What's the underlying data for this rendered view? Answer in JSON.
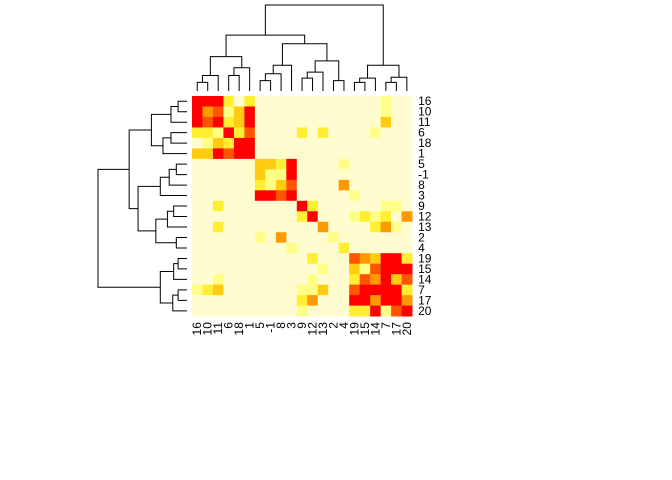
{
  "chart_data": {
    "type": "heatmap",
    "title": "",
    "xlabel": "",
    "ylabel": "",
    "color_scale": [
      "#fffdd0",
      "#ffff88",
      "#ffee33",
      "#ffcc11",
      "#ff9900",
      "#ff5500",
      "#ff0000"
    ],
    "row_labels": [
      "16",
      "10",
      "11",
      "6",
      "18",
      "1",
      "5",
      "-1",
      "8",
      "3",
      "9",
      "12",
      "13",
      "2",
      "4",
      "19",
      "15",
      "14",
      "7",
      "17",
      "20"
    ],
    "col_labels": [
      "16",
      "10",
      "11",
      "6",
      "18",
      "1",
      "5",
      "-1",
      "8",
      "3",
      "9",
      "12",
      "13",
      "2",
      "4",
      "19",
      "15",
      "14",
      "7",
      "17",
      "20"
    ],
    "values": [
      [
        6,
        6,
        6,
        2,
        0,
        2,
        0,
        0,
        0,
        0,
        0,
        0,
        0,
        0,
        0,
        0,
        0,
        0,
        1,
        0,
        0
      ],
      [
        6,
        4,
        5,
        1,
        3,
        6,
        0,
        0,
        0,
        0,
        0,
        0,
        0,
        0,
        0,
        0,
        0,
        0,
        1,
        0,
        0
      ],
      [
        6,
        5,
        6,
        2,
        3,
        6,
        0,
        0,
        0,
        0,
        0,
        0,
        0,
        0,
        0,
        0,
        0,
        0,
        3,
        0,
        0
      ],
      [
        2,
        2,
        1,
        6,
        2,
        5,
        0,
        0,
        0,
        0,
        2,
        0,
        2,
        0,
        0,
        0,
        0,
        1,
        0,
        0,
        0
      ],
      [
        0,
        1,
        3,
        2,
        6,
        6,
        0,
        0,
        0,
        0,
        0,
        0,
        0,
        0,
        0,
        0,
        0,
        0,
        0,
        0,
        0
      ],
      [
        3,
        3,
        6,
        5,
        6,
        6,
        0,
        0,
        0,
        0,
        0,
        0,
        0,
        0,
        0,
        0,
        0,
        0,
        0,
        0,
        0
      ],
      [
        0,
        0,
        0,
        0,
        0,
        0,
        3,
        3,
        2,
        6,
        0,
        0,
        0,
        0,
        1,
        0,
        0,
        0,
        0,
        0,
        0
      ],
      [
        0,
        0,
        0,
        0,
        0,
        0,
        3,
        1,
        1,
        6,
        0,
        0,
        0,
        0,
        0,
        0,
        0,
        0,
        0,
        0,
        0
      ],
      [
        0,
        0,
        0,
        0,
        0,
        0,
        2,
        1,
        3,
        5,
        0,
        0,
        0,
        0,
        4,
        0,
        0,
        0,
        0,
        0,
        0
      ],
      [
        0,
        0,
        0,
        0,
        0,
        0,
        6,
        6,
        5,
        6,
        0,
        0,
        0,
        0,
        0,
        1,
        0,
        0,
        0,
        0,
        0
      ],
      [
        0,
        0,
        2,
        0,
        0,
        0,
        0,
        0,
        0,
        0,
        6,
        2,
        0,
        0,
        0,
        0,
        0,
        0,
        1,
        1,
        0
      ],
      [
        0,
        0,
        0,
        0,
        0,
        0,
        0,
        0,
        0,
        0,
        2,
        6,
        0,
        0,
        0,
        1,
        2,
        1,
        2,
        0,
        4
      ],
      [
        0,
        0,
        2,
        0,
        0,
        0,
        0,
        0,
        0,
        0,
        0,
        0,
        4,
        0,
        0,
        0,
        0,
        2,
        4,
        1,
        0
      ],
      [
        0,
        0,
        0,
        0,
        0,
        0,
        1,
        0,
        4,
        0,
        0,
        0,
        0,
        1,
        0,
        0,
        0,
        0,
        0,
        0,
        0
      ],
      [
        0,
        0,
        0,
        0,
        0,
        0,
        0,
        0,
        0,
        1,
        0,
        0,
        0,
        0,
        2,
        0,
        0,
        0,
        0,
        0,
        0
      ],
      [
        0,
        0,
        0,
        0,
        0,
        0,
        0,
        0,
        0,
        0,
        0,
        2,
        0,
        0,
        0,
        5,
        4,
        3,
        6,
        6,
        2
      ],
      [
        0,
        0,
        0,
        0,
        0,
        0,
        0,
        0,
        0,
        0,
        0,
        0,
        1,
        0,
        0,
        3,
        1,
        5,
        6,
        6,
        6
      ],
      [
        0,
        0,
        1,
        0,
        0,
        0,
        0,
        0,
        0,
        0,
        0,
        1,
        0,
        0,
        0,
        2,
        5,
        4,
        6,
        3,
        5
      ],
      [
        1,
        2,
        3,
        0,
        0,
        0,
        0,
        0,
        0,
        0,
        1,
        1,
        3,
        0,
        0,
        5,
        6,
        6,
        6,
        6,
        2
      ],
      [
        0,
        0,
        0,
        0,
        0,
        0,
        0,
        0,
        0,
        0,
        2,
        4,
        0,
        0,
        0,
        6,
        6,
        4,
        6,
        6,
        4
      ],
      [
        0,
        0,
        0,
        0,
        0,
        0,
        0,
        0,
        0,
        0,
        1,
        0,
        0,
        0,
        0,
        2,
        2,
        6,
        1,
        5,
        6
      ]
    ]
  }
}
